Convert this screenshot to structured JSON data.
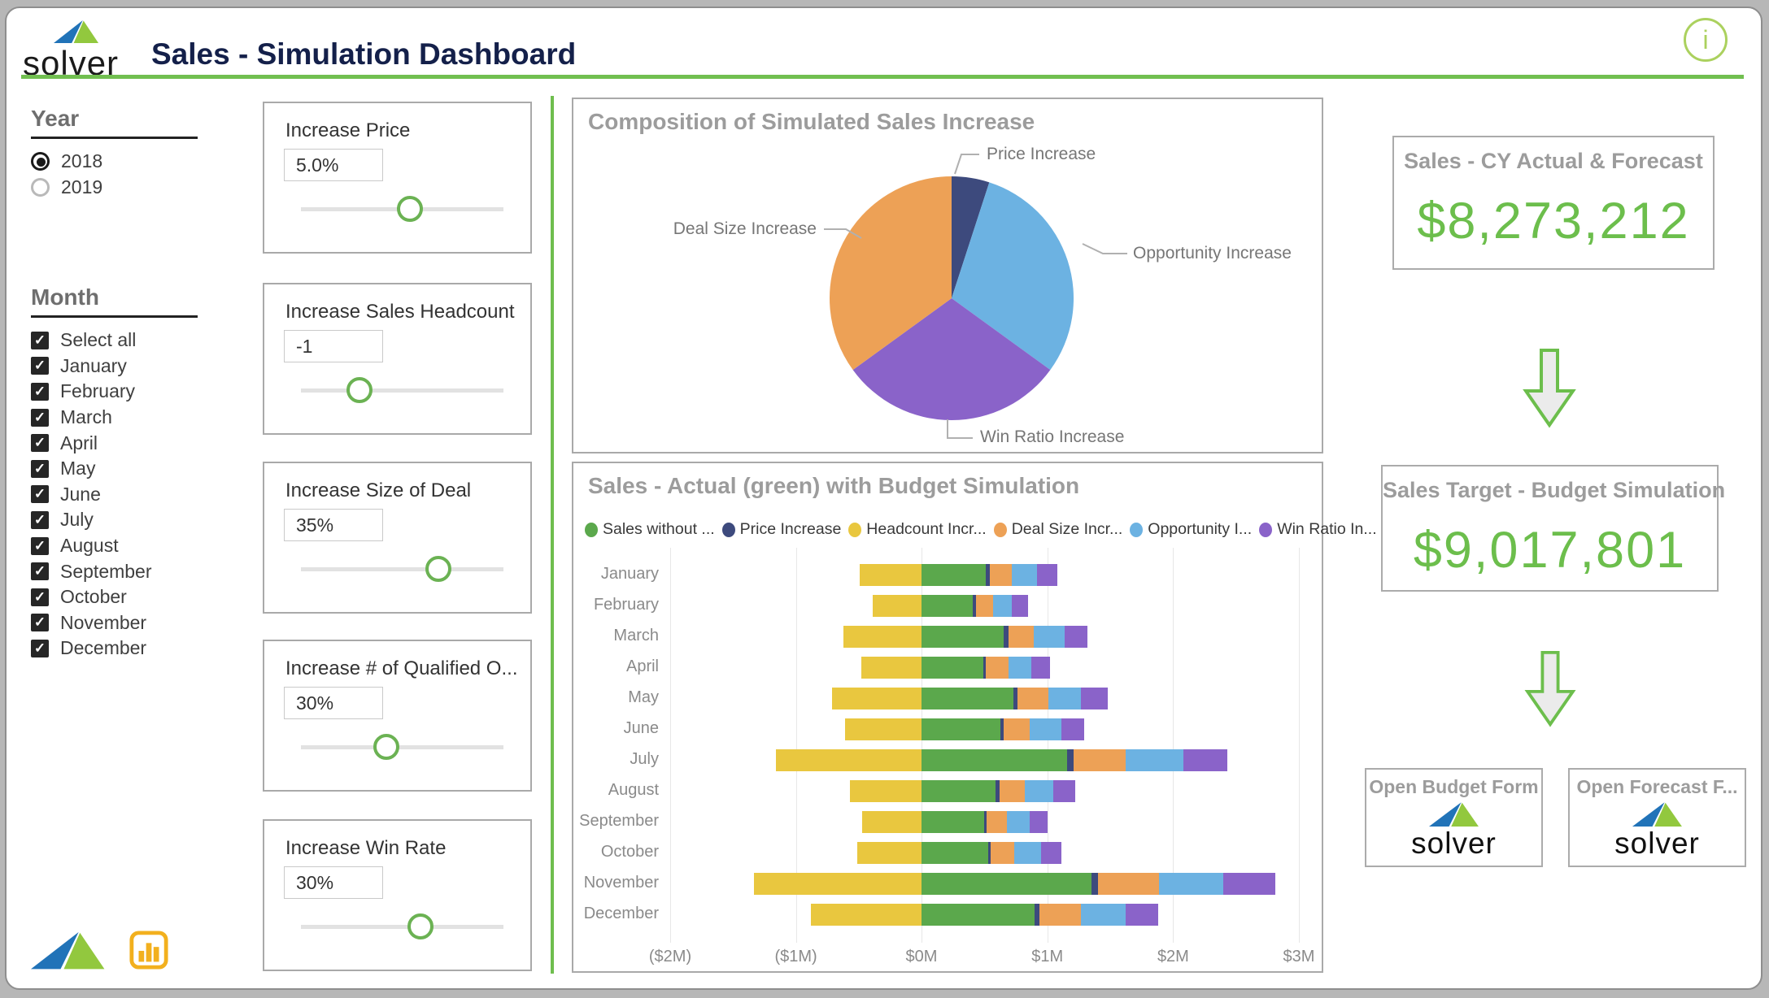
{
  "header": {
    "brand": "solver",
    "title": "Sales - Simulation Dashboard",
    "info_icon": "i"
  },
  "filters": {
    "year": {
      "heading": "Year",
      "options": [
        {
          "label": "2018",
          "selected": true
        },
        {
          "label": "2019",
          "selected": false
        }
      ]
    },
    "month": {
      "heading": "Month",
      "options": [
        {
          "label": "Select all",
          "checked": true
        },
        {
          "label": "January",
          "checked": true
        },
        {
          "label": "February",
          "checked": true
        },
        {
          "label": "March",
          "checked": true
        },
        {
          "label": "April",
          "checked": true
        },
        {
          "label": "May",
          "checked": true
        },
        {
          "label": "June",
          "checked": true
        },
        {
          "label": "July",
          "checked": true
        },
        {
          "label": "August",
          "checked": true
        },
        {
          "label": "September",
          "checked": true
        },
        {
          "label": "October",
          "checked": true
        },
        {
          "label": "November",
          "checked": true
        },
        {
          "label": "December",
          "checked": true
        }
      ]
    }
  },
  "sliders": [
    {
      "label": "Increase Price",
      "value": "5.0%",
      "handle_pct": 54
    },
    {
      "label": "Increase Sales Headcount",
      "value": "-1",
      "handle_pct": 29
    },
    {
      "label": "Increase Size of Deal",
      "value": "35%",
      "handle_pct": 68
    },
    {
      "label": "Increase # of Qualified O...",
      "value": "30%",
      "handle_pct": 42
    },
    {
      "label": "Increase Win Rate",
      "value": "30%",
      "handle_pct": 59
    }
  ],
  "kpi_flow": {
    "cards": [
      {
        "title": "Sales - CY Actual & Forecast",
        "value": "$8,273,212"
      },
      {
        "title": "Sales Target - Budget Simulation",
        "value": "$9,017,801"
      }
    ],
    "buttons": [
      {
        "label": "Open Budget Form",
        "logo": "solver"
      },
      {
        "label": "Open Forecast F...",
        "logo": "solver"
      }
    ]
  },
  "colors": {
    "accent_green": "#6cbe4c",
    "header_rule_green": "#71bf50",
    "title_navy": "#14204a",
    "series_green": "#5ba84c",
    "series_navy": "#3d4a7d",
    "series_yellow": "#e9c73f",
    "series_orange": "#eda156",
    "series_blue": "#6cb2e2",
    "series_purple": "#8a63c9"
  },
  "chart_data": [
    {
      "type": "pie",
      "title": "Composition of Simulated Sales Increase",
      "start": "12-o-clock-clockwise",
      "slices": [
        {
          "label": "Price Increase",
          "pct": 5,
          "color": "#3d4a7d"
        },
        {
          "label": "Opportunity Increase",
          "pct": 30,
          "color": "#6cb2e2"
        },
        {
          "label": "Win Ratio Increase",
          "pct": 30,
          "color": "#8a63c9"
        },
        {
          "label": "Deal Size Increase",
          "pct": 35,
          "color": "#eda156"
        }
      ]
    },
    {
      "type": "bar",
      "orientation": "horizontal-diverging-stacked",
      "title": "Sales - Actual (green) with Budget Simulation",
      "categories": [
        "January",
        "February",
        "March",
        "April",
        "May",
        "June",
        "July",
        "August",
        "September",
        "October",
        "November",
        "December"
      ],
      "x_ticks": [
        "($2M)",
        "($1M)",
        "$0M",
        "$1M",
        "$2M",
        "$3M"
      ],
      "xlim_millions": [
        -2,
        3
      ],
      "units": "USD millions",
      "series": [
        {
          "name": "Sales without ...",
          "color": "#5ba84c",
          "values": [
            0.51,
            0.41,
            0.65,
            0.49,
            0.73,
            0.63,
            1.16,
            0.59,
            0.5,
            0.53,
            1.35,
            0.9
          ]
        },
        {
          "name": "Price Increase",
          "color": "#3d4a7d",
          "values": [
            0.03,
            0.02,
            0.04,
            0.02,
            0.03,
            0.02,
            0.05,
            0.03,
            0.02,
            0.02,
            0.05,
            0.04
          ]
        },
        {
          "name": "Headcount Incr...",
          "color": "#e9c73f",
          "values": [
            -0.49,
            -0.39,
            -0.62,
            -0.48,
            -0.71,
            -0.61,
            -1.16,
            -0.57,
            -0.47,
            -0.51,
            -1.33,
            -0.88
          ]
        },
        {
          "name": "Deal Size Incr...",
          "color": "#eda156",
          "values": [
            0.18,
            0.14,
            0.2,
            0.18,
            0.25,
            0.21,
            0.41,
            0.2,
            0.16,
            0.19,
            0.49,
            0.33
          ]
        },
        {
          "name": "Opportunity I...",
          "color": "#6cb2e2",
          "values": [
            0.2,
            0.15,
            0.25,
            0.18,
            0.26,
            0.25,
            0.46,
            0.23,
            0.18,
            0.21,
            0.51,
            0.35
          ]
        },
        {
          "name": "Win Ratio In...",
          "color": "#8a63c9",
          "values": [
            0.16,
            0.13,
            0.18,
            0.15,
            0.21,
            0.18,
            0.35,
            0.17,
            0.14,
            0.16,
            0.41,
            0.26
          ]
        }
      ],
      "legend_position": "top"
    }
  ]
}
